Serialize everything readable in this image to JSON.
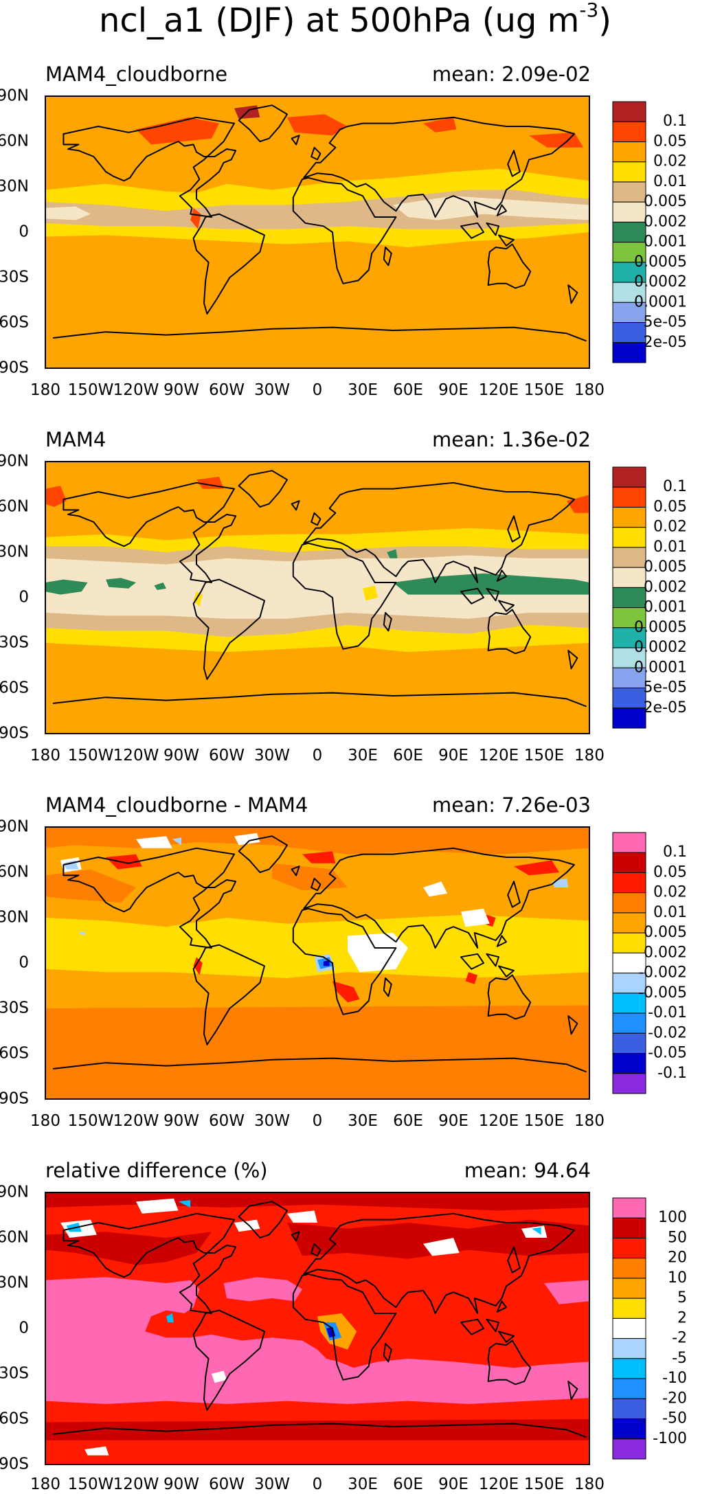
{
  "figure": {
    "title": "ncl_a1 (DJF) at 500hPa (ug m",
    "title_exponent": "-3",
    "title_close": ")"
  },
  "axes": {
    "lon_ticks": [
      "180",
      "150W",
      "120W",
      "90W",
      "60W",
      "30W",
      "0",
      "30E",
      "60E",
      "90E",
      "120E",
      "150E",
      "180"
    ],
    "lat_ticks": [
      "90N",
      "60N",
      "30N",
      "0",
      "30S",
      "60S",
      "90S"
    ],
    "lon_range": [
      -180,
      180
    ],
    "lat_range": [
      -90,
      90
    ]
  },
  "colors": {
    "abs_levels": [
      "#0000cd",
      "#3a5fe0",
      "#87a4ee",
      "#b0e0e6",
      "#20b2aa",
      "#7cc53c",
      "#2e8b57",
      "#f5e6c8",
      "#deb887",
      "#ffde00",
      "#ffa500",
      "#ff4500",
      "#b22222"
    ],
    "diff_levels": [
      "#8a2be2",
      "#0000cd",
      "#3a5fe0",
      "#1e90ff",
      "#00bfff",
      "#aad4ff",
      "#ffffff",
      "#ffde00",
      "#ffa500",
      "#ff7f00",
      "#ff1a00",
      "#cd0000",
      "#ff69b4"
    ]
  },
  "chart_data": [
    {
      "type": "heatmap",
      "panel": "MAM4_cloudborne",
      "title": "MAM4_cloudborne",
      "mean_label": "mean: 2.09e-02",
      "colorbar_labels": [
        "0.1",
        "0.05",
        "0.02",
        "0.01",
        "0.005",
        "0.002",
        "0.001",
        "0.0005",
        "0.0002",
        "0.0001",
        "5e-05",
        "2e-05"
      ],
      "colorbar_colors": [
        "#b22222",
        "#ff4500",
        "#ffa500",
        "#ffde00",
        "#deb887",
        "#f5e6c8",
        "#2e8b57",
        "#7cc53c",
        "#20b2aa",
        "#b0e0e6",
        "#87a4ee",
        "#3a5fe0",
        "#0000cd"
      ],
      "mean": 0.0209
    },
    {
      "type": "heatmap",
      "panel": "MAM4",
      "title": "MAM4",
      "mean_label": "mean: 1.36e-02",
      "colorbar_labels": [
        "0.1",
        "0.05",
        "0.02",
        "0.01",
        "0.005",
        "0.002",
        "0.001",
        "0.0005",
        "0.0002",
        "0.0001",
        "5e-05",
        "2e-05"
      ],
      "colorbar_colors": [
        "#b22222",
        "#ff4500",
        "#ffa500",
        "#ffde00",
        "#deb887",
        "#f5e6c8",
        "#2e8b57",
        "#7cc53c",
        "#20b2aa",
        "#b0e0e6",
        "#87a4ee",
        "#3a5fe0",
        "#0000cd"
      ],
      "mean": 0.0136
    },
    {
      "type": "heatmap",
      "panel": "difference",
      "title": "MAM4_cloudborne - MAM4",
      "mean_label": "mean: 7.26e-03",
      "colorbar_labels": [
        "0.1",
        "0.05",
        "0.02",
        "0.01",
        "0.005",
        "0.002",
        "-0.002",
        "-0.005",
        "-0.01",
        "-0.02",
        "-0.05",
        "-0.1"
      ],
      "colorbar_colors": [
        "#ff69b4",
        "#cd0000",
        "#ff1a00",
        "#ff7f00",
        "#ffa500",
        "#ffde00",
        "#ffffff",
        "#aad4ff",
        "#00bfff",
        "#1e90ff",
        "#3a5fe0",
        "#0000cd",
        "#8a2be2"
      ],
      "mean": 0.00726
    },
    {
      "type": "heatmap",
      "panel": "relative-difference",
      "title": "relative difference (%)",
      "mean_label": "mean: 94.64",
      "colorbar_labels": [
        "100",
        "50",
        "20",
        "10",
        "5",
        "2",
        "-2",
        "-5",
        "-10",
        "-20",
        "-50",
        "-100"
      ],
      "colorbar_colors": [
        "#ff69b4",
        "#cd0000",
        "#ff1a00",
        "#ff7f00",
        "#ffa500",
        "#ffde00",
        "#ffffff",
        "#aad4ff",
        "#00bfff",
        "#1e90ff",
        "#3a5fe0",
        "#0000cd",
        "#8a2be2"
      ],
      "mean": 94.64
    }
  ]
}
